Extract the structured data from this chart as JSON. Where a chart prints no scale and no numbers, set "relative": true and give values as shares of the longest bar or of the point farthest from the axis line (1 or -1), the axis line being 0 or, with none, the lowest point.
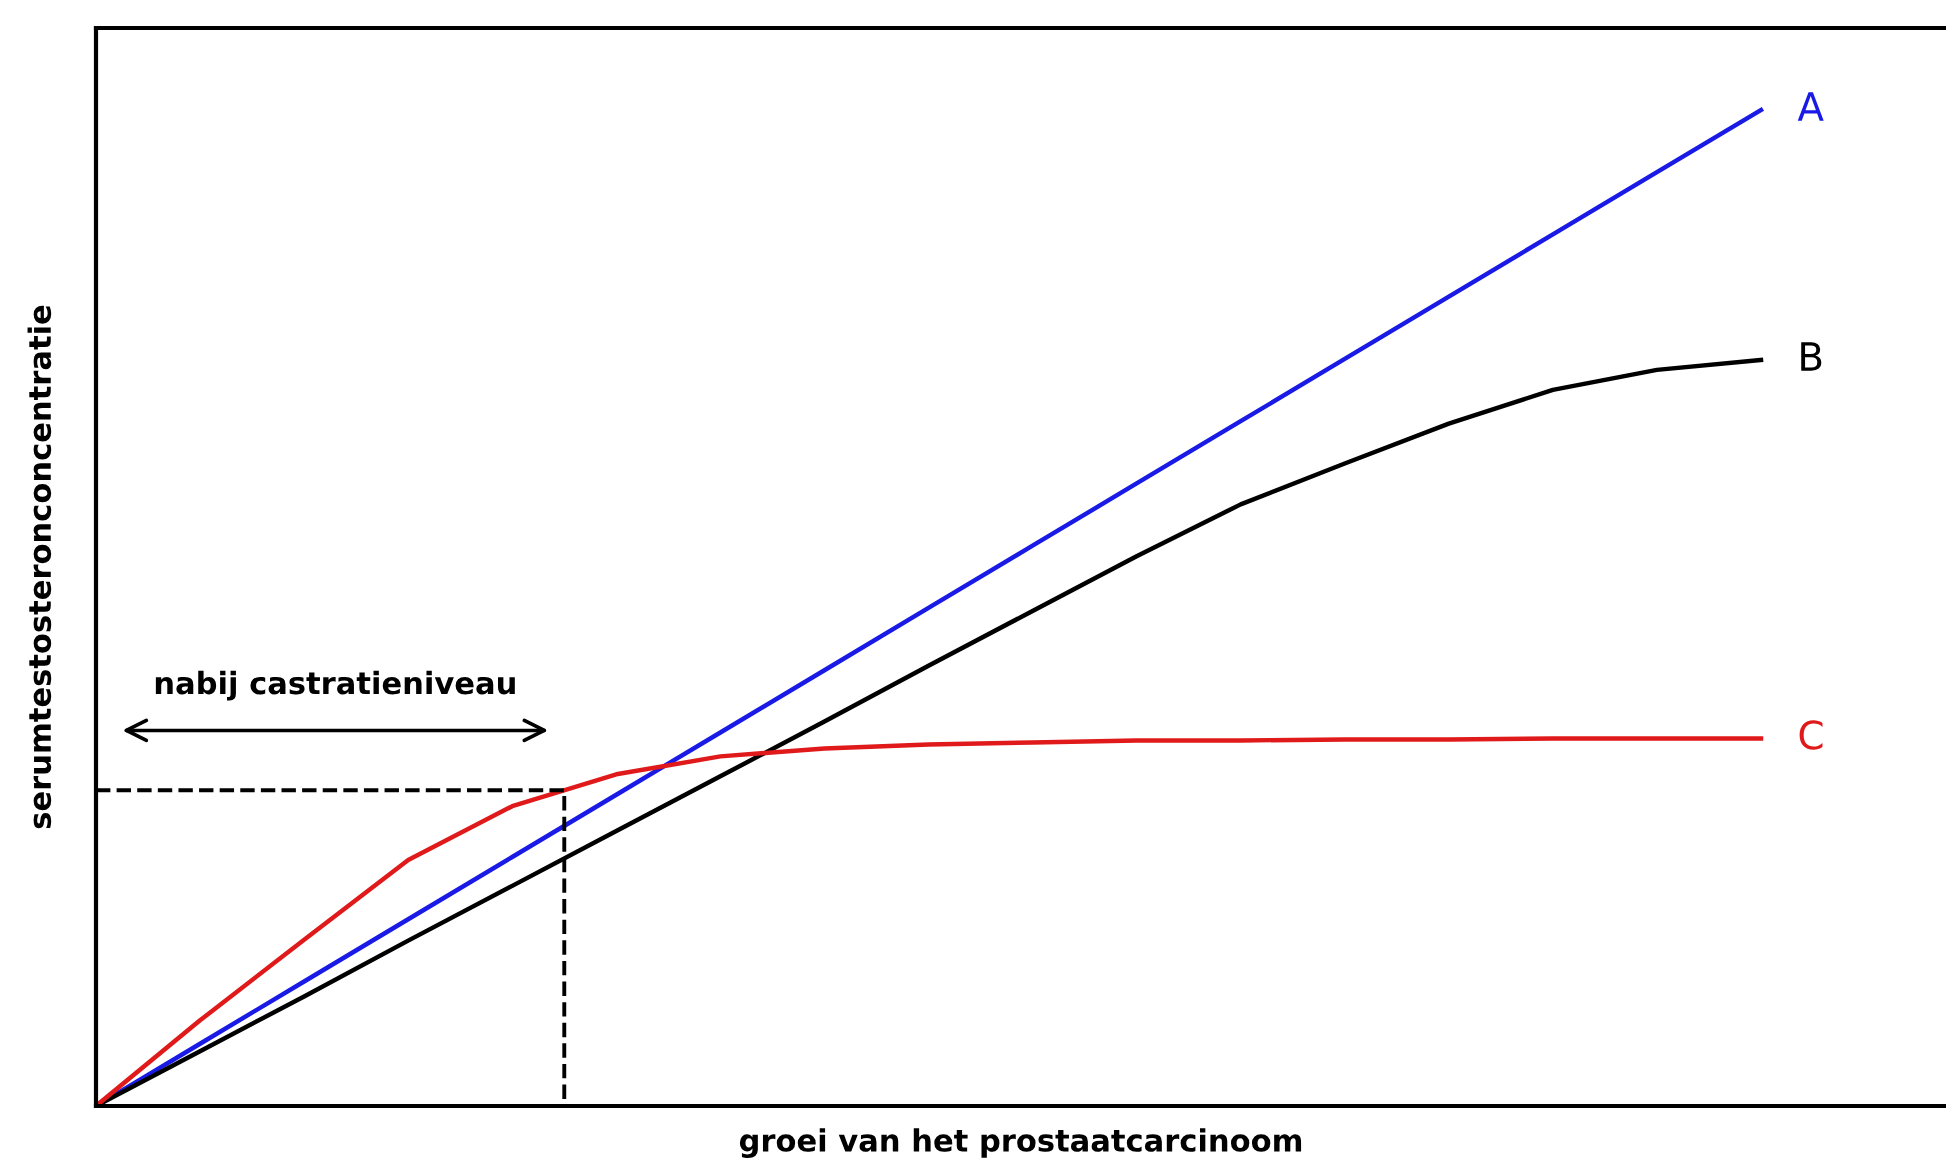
{
  "chart_data": {
    "type": "line",
    "relative": true,
    "xlabel": "groei van het prostaatcarcinoom",
    "ylabel": "serumtestosteronconcentratie",
    "categories": [
      null,
      null,
      null,
      null,
      null,
      null,
      null,
      null,
      null,
      null,
      null,
      null,
      null,
      null,
      null,
      null,
      null
    ],
    "series": [
      {
        "name": "A",
        "color": "#1a1ae6",
        "values": [
          0,
          0.0625,
          0.125,
          0.1875,
          0.25,
          0.3125,
          0.375,
          0.4375,
          0.5,
          0.5625,
          0.625,
          0.6875,
          0.75,
          0.8125,
          0.875,
          0.9375,
          1
        ]
      },
      {
        "name": "B",
        "color": "#000000",
        "values": [
          0,
          0.055,
          0.11,
          0.166,
          0.221,
          0.276,
          0.331,
          0.386,
          0.442,
          0.497,
          0.552,
          0.604,
          0.645,
          0.685,
          0.719,
          0.739,
          0.749
        ]
      },
      {
        "name": "C",
        "color": "#e01a1a",
        "values": [
          0,
          0.086,
          0.167,
          0.247,
          0.301,
          0.333,
          0.351,
          0.359,
          0.363,
          0.365,
          0.367,
          0.367,
          0.368,
          0.368,
          0.369,
          0.369,
          0.369
        ]
      }
    ],
    "ref_lines": [
      {
        "axis": "y",
        "value": 0.317,
        "color": "#000000",
        "line_style": "dashed"
      }
    ],
    "annotations": [
      "nabij castratieniveau"
    ],
    "line_style": "solid",
    "marker": "none",
    "legend": false
  }
}
